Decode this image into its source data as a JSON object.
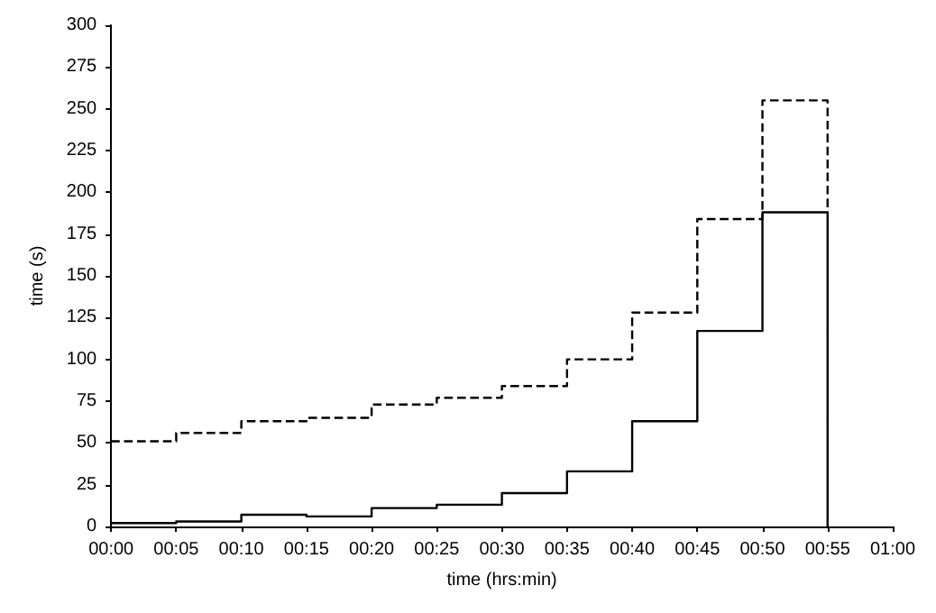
{
  "chart_data": {
    "type": "step",
    "xlabel": "time (hrs:min)",
    "ylabel": "time (s)",
    "series": [
      {
        "color": "#000000",
        "line_style": "dashed",
        "x": [
          0,
          0.083333,
          0.166667,
          0.25,
          0.333333,
          0.416667,
          0.5,
          0.583333,
          0.666667,
          0.75,
          0.833333,
          0.916667,
          0.916667
        ],
        "values": [
          51,
          56,
          63,
          65,
          73,
          77,
          84,
          100,
          128,
          184,
          255,
          255,
          188
        ]
      },
      {
        "color": "#000000",
        "line_style": "solid",
        "x": [
          0,
          0.083333,
          0.166667,
          0.25,
          0.333333,
          0.416667,
          0.5,
          0.583333,
          0.666667,
          0.75,
          0.833333,
          0.916667,
          0.916667
        ],
        "values": [
          2,
          3,
          7,
          6,
          11,
          13,
          20,
          33,
          63,
          117,
          188,
          188,
          0
        ]
      }
    ],
    "xlim": [
      0,
      1
    ],
    "xticks": [
      {
        "value": 0,
        "label": "00:00"
      },
      {
        "value": 0.083333,
        "label": "00:05"
      },
      {
        "value": 0.166667,
        "label": "00:10"
      },
      {
        "value": 0.25,
        "label": "00:15"
      },
      {
        "value": 0.333333,
        "label": "00:20"
      },
      {
        "value": 0.416667,
        "label": "00:25"
      },
      {
        "value": 0.5,
        "label": "00:30"
      },
      {
        "value": 0.583333,
        "label": "00:35"
      },
      {
        "value": 0.666667,
        "label": "00:40"
      },
      {
        "value": 0.75,
        "label": "00:45"
      },
      {
        "value": 0.833333,
        "label": "00:50"
      },
      {
        "value": 0.916667,
        "label": "00:55"
      },
      {
        "value": 1,
        "label": "01:00"
      }
    ],
    "ylim": [
      0,
      300
    ],
    "yticks": [
      0,
      25,
      50,
      75,
      100,
      125,
      150,
      175,
      200,
      225,
      250,
      275,
      300
    ],
    "marker": "none"
  }
}
